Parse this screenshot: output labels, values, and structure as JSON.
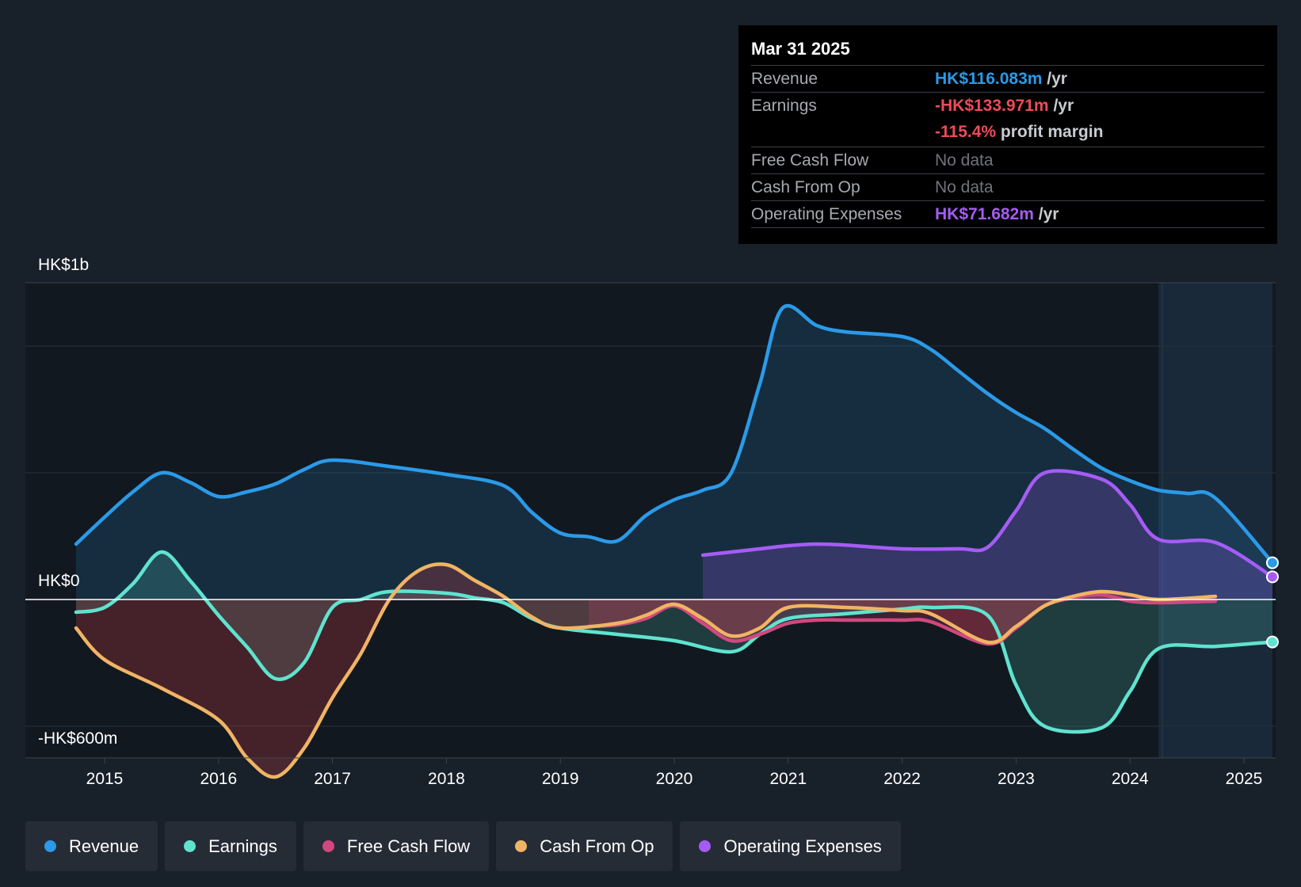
{
  "chart_data": {
    "type": "area",
    "y_axis_labels": {
      "top": "HK$1b",
      "zero": "HK$0",
      "bottom": "-HK$600m"
    },
    "ylim": [
      -600,
      1000
    ],
    "units": "HK$m",
    "x_ticks": [
      "2015",
      "2016",
      "2017",
      "2018",
      "2019",
      "2020",
      "2021",
      "2022",
      "2023",
      "2024",
      "2025"
    ],
    "forecast_start": 2024.25,
    "x_end": 2025.25,
    "series": [
      {
        "name": "Revenue",
        "color": "#2b9ae8",
        "points": [
          [
            2014.75,
            175
          ],
          [
            2015.0,
            260
          ],
          [
            2015.25,
            340
          ],
          [
            2015.5,
            400
          ],
          [
            2015.75,
            370
          ],
          [
            2016.0,
            325
          ],
          [
            2016.25,
            340
          ],
          [
            2016.5,
            365
          ],
          [
            2016.75,
            410
          ],
          [
            2017.0,
            440
          ],
          [
            2017.5,
            420
          ],
          [
            2018.0,
            395
          ],
          [
            2018.5,
            360
          ],
          [
            2018.75,
            275
          ],
          [
            2019.0,
            210
          ],
          [
            2019.25,
            198
          ],
          [
            2019.5,
            185
          ],
          [
            2019.75,
            265
          ],
          [
            2020.0,
            315
          ],
          [
            2020.25,
            345
          ],
          [
            2020.5,
            400
          ],
          [
            2020.75,
            680
          ],
          [
            2020.95,
            920
          ],
          [
            2021.25,
            865
          ],
          [
            2021.5,
            845
          ],
          [
            2022.0,
            830
          ],
          [
            2022.25,
            790
          ],
          [
            2022.5,
            720
          ],
          [
            2022.75,
            650
          ],
          [
            2023.0,
            590
          ],
          [
            2023.25,
            540
          ],
          [
            2023.5,
            475
          ],
          [
            2023.75,
            415
          ],
          [
            2024.0,
            375
          ],
          [
            2024.25,
            345
          ],
          [
            2024.5,
            335
          ],
          [
            2024.75,
            320
          ],
          [
            2025.25,
            116.083
          ]
        ]
      },
      {
        "name": "Earnings",
        "color": "#5fe3cf",
        "points": [
          [
            2014.75,
            -40
          ],
          [
            2015.0,
            -25
          ],
          [
            2015.25,
            50
          ],
          [
            2015.5,
            150
          ],
          [
            2015.75,
            60
          ],
          [
            2016.0,
            -50
          ],
          [
            2016.25,
            -150
          ],
          [
            2016.5,
            -250
          ],
          [
            2016.75,
            -200
          ],
          [
            2017.0,
            -25
          ],
          [
            2017.25,
            0
          ],
          [
            2017.5,
            25
          ],
          [
            2018.0,
            20
          ],
          [
            2018.25,
            5
          ],
          [
            2018.5,
            -10
          ],
          [
            2018.75,
            -60
          ],
          [
            2019.0,
            -90
          ],
          [
            2019.5,
            -110
          ],
          [
            2020.0,
            -130
          ],
          [
            2020.5,
            -165
          ],
          [
            2020.75,
            -110
          ],
          [
            2021.0,
            -60
          ],
          [
            2021.5,
            -45
          ],
          [
            2022.0,
            -30
          ],
          [
            2022.25,
            -25
          ],
          [
            2022.75,
            -50
          ],
          [
            2023.0,
            -270
          ],
          [
            2023.25,
            -400
          ],
          [
            2023.75,
            -405
          ],
          [
            2024.0,
            -290
          ],
          [
            2024.25,
            -155
          ],
          [
            2024.75,
            -148
          ],
          [
            2025.25,
            -133.971
          ]
        ]
      },
      {
        "name": "Free Cash Flow",
        "color": "#d1487e",
        "points": [
          [
            2019.25,
            -85
          ],
          [
            2019.5,
            -80
          ],
          [
            2019.75,
            -60
          ],
          [
            2020.0,
            -20
          ],
          [
            2020.25,
            -75
          ],
          [
            2020.5,
            -130
          ],
          [
            2020.75,
            -110
          ],
          [
            2021.0,
            -75
          ],
          [
            2021.25,
            -65
          ],
          [
            2021.5,
            -65
          ],
          [
            2022.0,
            -65
          ],
          [
            2022.25,
            -70
          ],
          [
            2022.75,
            -140
          ],
          [
            2023.0,
            -90
          ],
          [
            2023.25,
            -20
          ],
          [
            2023.5,
            5
          ],
          [
            2023.75,
            15
          ],
          [
            2024.0,
            -5
          ],
          [
            2024.25,
            -10
          ],
          [
            2024.75,
            -5
          ]
        ]
      },
      {
        "name": "Cash From Op",
        "color": "#f0b464",
        "points": [
          [
            2014.75,
            -90
          ],
          [
            2015.0,
            -190
          ],
          [
            2015.5,
            -280
          ],
          [
            2016.0,
            -380
          ],
          [
            2016.25,
            -500
          ],
          [
            2016.5,
            -560
          ],
          [
            2016.75,
            -470
          ],
          [
            2017.0,
            -310
          ],
          [
            2017.25,
            -170
          ],
          [
            2017.5,
            0
          ],
          [
            2017.75,
            90
          ],
          [
            2018.0,
            110
          ],
          [
            2018.25,
            60
          ],
          [
            2018.5,
            10
          ],
          [
            2018.75,
            -55
          ],
          [
            2019.0,
            -90
          ],
          [
            2019.5,
            -75
          ],
          [
            2019.75,
            -50
          ],
          [
            2020.0,
            -15
          ],
          [
            2020.25,
            -60
          ],
          [
            2020.5,
            -115
          ],
          [
            2020.75,
            -90
          ],
          [
            2021.0,
            -25
          ],
          [
            2021.5,
            -25
          ],
          [
            2022.0,
            -35
          ],
          [
            2022.25,
            -45
          ],
          [
            2022.75,
            -135
          ],
          [
            2023.0,
            -85
          ],
          [
            2023.25,
            -20
          ],
          [
            2023.5,
            10
          ],
          [
            2023.75,
            25
          ],
          [
            2024.0,
            15
          ],
          [
            2024.25,
            0
          ],
          [
            2024.75,
            10
          ]
        ]
      },
      {
        "name": "Operating Expenses",
        "color": "#a55cf5",
        "points": [
          [
            2020.25,
            140
          ],
          [
            2020.75,
            160
          ],
          [
            2021.0,
            170
          ],
          [
            2021.25,
            175
          ],
          [
            2021.5,
            172
          ],
          [
            2022.0,
            160
          ],
          [
            2022.5,
            160
          ],
          [
            2022.75,
            165
          ],
          [
            2023.0,
            280
          ],
          [
            2023.25,
            400
          ],
          [
            2023.75,
            380
          ],
          [
            2024.0,
            300
          ],
          [
            2024.25,
            190
          ],
          [
            2024.75,
            180
          ],
          [
            2025.25,
            71.682
          ]
        ]
      }
    ]
  },
  "tooltip": {
    "date": "Mar 31 2025",
    "rows": [
      {
        "label": "Revenue",
        "value": "HK$116.083m",
        "unit": "/yr"
      },
      {
        "label": "Earnings",
        "value": "-HK$133.971m",
        "unit": "/yr",
        "margin_value": "-115.4%",
        "margin_label": "profit margin"
      },
      {
        "label": "Free Cash Flow",
        "value": "No data"
      },
      {
        "label": "Cash From Op",
        "value": "No data"
      },
      {
        "label": "Operating Expenses",
        "value": "HK$71.682m",
        "unit": "/yr"
      }
    ]
  },
  "legend": [
    {
      "label": "Revenue",
      "color": "#2b9ae8"
    },
    {
      "label": "Earnings",
      "color": "#5fe3cf"
    },
    {
      "label": "Free Cash Flow",
      "color": "#d1487e"
    },
    {
      "label": "Cash From Op",
      "color": "#f0b464"
    },
    {
      "label": "Operating Expenses",
      "color": "#a55cf5"
    }
  ]
}
